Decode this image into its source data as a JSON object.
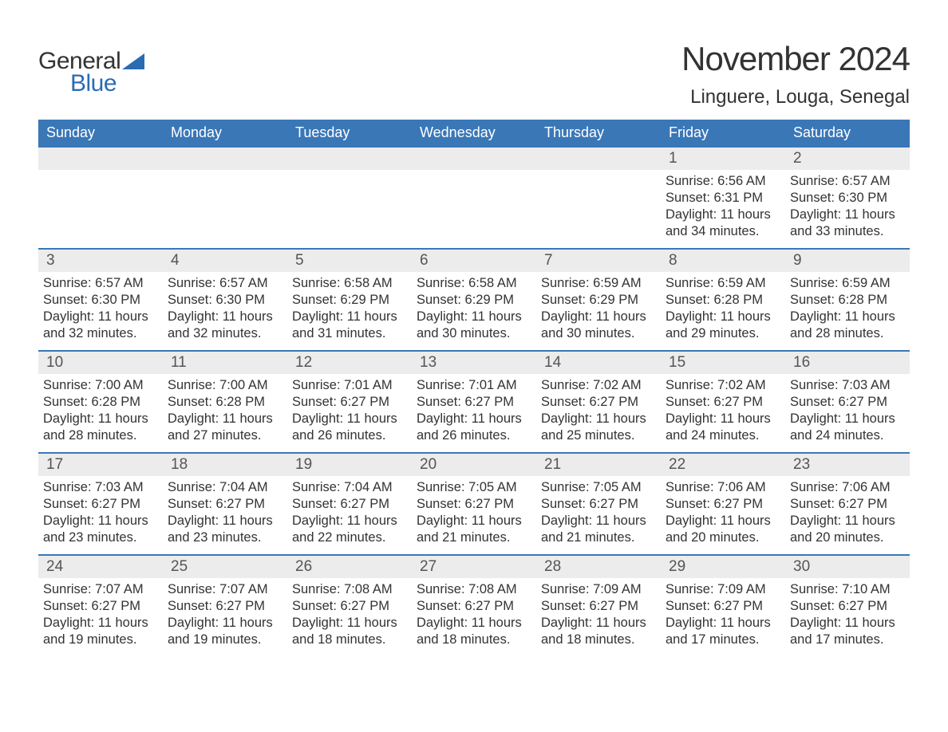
{
  "branding": {
    "logo_text_1": "General",
    "logo_text_2": "Blue",
    "logo_color_general": "#333333",
    "logo_color_blue": "#2a6bb3",
    "logo_triangle_color": "#2a6bb3"
  },
  "header": {
    "month_title": "November 2024",
    "location": "Linguere, Louga, Senegal"
  },
  "colors": {
    "header_bar_bg": "#3a77b7",
    "header_bar_text": "#ffffff",
    "day_num_bg": "#ececec",
    "body_text": "#333333",
    "rule_color": "#3a77b7",
    "page_bg": "#ffffff"
  },
  "typography": {
    "month_title_fontsize": 42,
    "location_fontsize": 24,
    "dow_fontsize": 18,
    "daynum_fontsize": 19,
    "body_fontsize": 16.5,
    "font_family": "Arial"
  },
  "calendar": {
    "day_labels": [
      "Sunday",
      "Monday",
      "Tuesday",
      "Wednesday",
      "Thursday",
      "Friday",
      "Saturday"
    ],
    "weeks": [
      {
        "days": [
          {
            "num": "",
            "sunrise": "",
            "sunset": "",
            "daylight1": "",
            "daylight2": ""
          },
          {
            "num": "",
            "sunrise": "",
            "sunset": "",
            "daylight1": "",
            "daylight2": ""
          },
          {
            "num": "",
            "sunrise": "",
            "sunset": "",
            "daylight1": "",
            "daylight2": ""
          },
          {
            "num": "",
            "sunrise": "",
            "sunset": "",
            "daylight1": "",
            "daylight2": ""
          },
          {
            "num": "",
            "sunrise": "",
            "sunset": "",
            "daylight1": "",
            "daylight2": ""
          },
          {
            "num": "1",
            "sunrise": "Sunrise: 6:56 AM",
            "sunset": "Sunset: 6:31 PM",
            "daylight1": "Daylight: 11 hours",
            "daylight2": "and 34 minutes."
          },
          {
            "num": "2",
            "sunrise": "Sunrise: 6:57 AM",
            "sunset": "Sunset: 6:30 PM",
            "daylight1": "Daylight: 11 hours",
            "daylight2": "and 33 minutes."
          }
        ]
      },
      {
        "days": [
          {
            "num": "3",
            "sunrise": "Sunrise: 6:57 AM",
            "sunset": "Sunset: 6:30 PM",
            "daylight1": "Daylight: 11 hours",
            "daylight2": "and 32 minutes."
          },
          {
            "num": "4",
            "sunrise": "Sunrise: 6:57 AM",
            "sunset": "Sunset: 6:30 PM",
            "daylight1": "Daylight: 11 hours",
            "daylight2": "and 32 minutes."
          },
          {
            "num": "5",
            "sunrise": "Sunrise: 6:58 AM",
            "sunset": "Sunset: 6:29 PM",
            "daylight1": "Daylight: 11 hours",
            "daylight2": "and 31 minutes."
          },
          {
            "num": "6",
            "sunrise": "Sunrise: 6:58 AM",
            "sunset": "Sunset: 6:29 PM",
            "daylight1": "Daylight: 11 hours",
            "daylight2": "and 30 minutes."
          },
          {
            "num": "7",
            "sunrise": "Sunrise: 6:59 AM",
            "sunset": "Sunset: 6:29 PM",
            "daylight1": "Daylight: 11 hours",
            "daylight2": "and 30 minutes."
          },
          {
            "num": "8",
            "sunrise": "Sunrise: 6:59 AM",
            "sunset": "Sunset: 6:28 PM",
            "daylight1": "Daylight: 11 hours",
            "daylight2": "and 29 minutes."
          },
          {
            "num": "9",
            "sunrise": "Sunrise: 6:59 AM",
            "sunset": "Sunset: 6:28 PM",
            "daylight1": "Daylight: 11 hours",
            "daylight2": "and 28 minutes."
          }
        ]
      },
      {
        "days": [
          {
            "num": "10",
            "sunrise": "Sunrise: 7:00 AM",
            "sunset": "Sunset: 6:28 PM",
            "daylight1": "Daylight: 11 hours",
            "daylight2": "and 28 minutes."
          },
          {
            "num": "11",
            "sunrise": "Sunrise: 7:00 AM",
            "sunset": "Sunset: 6:28 PM",
            "daylight1": "Daylight: 11 hours",
            "daylight2": "and 27 minutes."
          },
          {
            "num": "12",
            "sunrise": "Sunrise: 7:01 AM",
            "sunset": "Sunset: 6:27 PM",
            "daylight1": "Daylight: 11 hours",
            "daylight2": "and 26 minutes."
          },
          {
            "num": "13",
            "sunrise": "Sunrise: 7:01 AM",
            "sunset": "Sunset: 6:27 PM",
            "daylight1": "Daylight: 11 hours",
            "daylight2": "and 26 minutes."
          },
          {
            "num": "14",
            "sunrise": "Sunrise: 7:02 AM",
            "sunset": "Sunset: 6:27 PM",
            "daylight1": "Daylight: 11 hours",
            "daylight2": "and 25 minutes."
          },
          {
            "num": "15",
            "sunrise": "Sunrise: 7:02 AM",
            "sunset": "Sunset: 6:27 PM",
            "daylight1": "Daylight: 11 hours",
            "daylight2": "and 24 minutes."
          },
          {
            "num": "16",
            "sunrise": "Sunrise: 7:03 AM",
            "sunset": "Sunset: 6:27 PM",
            "daylight1": "Daylight: 11 hours",
            "daylight2": "and 24 minutes."
          }
        ]
      },
      {
        "days": [
          {
            "num": "17",
            "sunrise": "Sunrise: 7:03 AM",
            "sunset": "Sunset: 6:27 PM",
            "daylight1": "Daylight: 11 hours",
            "daylight2": "and 23 minutes."
          },
          {
            "num": "18",
            "sunrise": "Sunrise: 7:04 AM",
            "sunset": "Sunset: 6:27 PM",
            "daylight1": "Daylight: 11 hours",
            "daylight2": "and 23 minutes."
          },
          {
            "num": "19",
            "sunrise": "Sunrise: 7:04 AM",
            "sunset": "Sunset: 6:27 PM",
            "daylight1": "Daylight: 11 hours",
            "daylight2": "and 22 minutes."
          },
          {
            "num": "20",
            "sunrise": "Sunrise: 7:05 AM",
            "sunset": "Sunset: 6:27 PM",
            "daylight1": "Daylight: 11 hours",
            "daylight2": "and 21 minutes."
          },
          {
            "num": "21",
            "sunrise": "Sunrise: 7:05 AM",
            "sunset": "Sunset: 6:27 PM",
            "daylight1": "Daylight: 11 hours",
            "daylight2": "and 21 minutes."
          },
          {
            "num": "22",
            "sunrise": "Sunrise: 7:06 AM",
            "sunset": "Sunset: 6:27 PM",
            "daylight1": "Daylight: 11 hours",
            "daylight2": "and 20 minutes."
          },
          {
            "num": "23",
            "sunrise": "Sunrise: 7:06 AM",
            "sunset": "Sunset: 6:27 PM",
            "daylight1": "Daylight: 11 hours",
            "daylight2": "and 20 minutes."
          }
        ]
      },
      {
        "days": [
          {
            "num": "24",
            "sunrise": "Sunrise: 7:07 AM",
            "sunset": "Sunset: 6:27 PM",
            "daylight1": "Daylight: 11 hours",
            "daylight2": "and 19 minutes."
          },
          {
            "num": "25",
            "sunrise": "Sunrise: 7:07 AM",
            "sunset": "Sunset: 6:27 PM",
            "daylight1": "Daylight: 11 hours",
            "daylight2": "and 19 minutes."
          },
          {
            "num": "26",
            "sunrise": "Sunrise: 7:08 AM",
            "sunset": "Sunset: 6:27 PM",
            "daylight1": "Daylight: 11 hours",
            "daylight2": "and 18 minutes."
          },
          {
            "num": "27",
            "sunrise": "Sunrise: 7:08 AM",
            "sunset": "Sunset: 6:27 PM",
            "daylight1": "Daylight: 11 hours",
            "daylight2": "and 18 minutes."
          },
          {
            "num": "28",
            "sunrise": "Sunrise: 7:09 AM",
            "sunset": "Sunset: 6:27 PM",
            "daylight1": "Daylight: 11 hours",
            "daylight2": "and 18 minutes."
          },
          {
            "num": "29",
            "sunrise": "Sunrise: 7:09 AM",
            "sunset": "Sunset: 6:27 PM",
            "daylight1": "Daylight: 11 hours",
            "daylight2": "and 17 minutes."
          },
          {
            "num": "30",
            "sunrise": "Sunrise: 7:10 AM",
            "sunset": "Sunset: 6:27 PM",
            "daylight1": "Daylight: 11 hours",
            "daylight2": "and 17 minutes."
          }
        ]
      }
    ]
  }
}
